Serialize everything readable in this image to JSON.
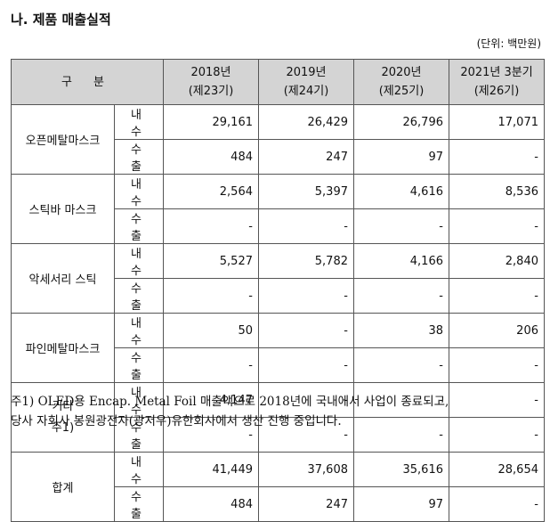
{
  "title": "나. 제품 매출실적",
  "unit": "(단위: 백만원)",
  "header": {
    "category": "구 분",
    "periods": [
      {
        "year": "2018년",
        "term": "(제23기)"
      },
      {
        "year": "2019년",
        "term": "(제24기)"
      },
      {
        "year": "2020년",
        "term": "(제25기)"
      },
      {
        "year": "2021년 3분기",
        "term": "(제26기)"
      }
    ]
  },
  "products": [
    {
      "name": "오픈메탈마스크",
      "name2": "",
      "rows": [
        {
          "type": "내 수",
          "values": [
            "29,161",
            "26,429",
            "26,796",
            "17,071"
          ]
        },
        {
          "type": "수 출",
          "values": [
            "484",
            "247",
            "97",
            "-"
          ]
        }
      ]
    },
    {
      "name": "스틱바 마스크",
      "name2": "",
      "rows": [
        {
          "type": "내 수",
          "values": [
            "2,564",
            "5,397",
            "4,616",
            "8,536"
          ]
        },
        {
          "type": "수 출",
          "values": [
            "-",
            "-",
            "-",
            "-"
          ]
        }
      ]
    },
    {
      "name": "악세서리 스틱",
      "name2": "",
      "rows": [
        {
          "type": "내 수",
          "values": [
            "5,527",
            "5,782",
            "4,166",
            "2,840"
          ]
        },
        {
          "type": "수 출",
          "values": [
            "-",
            "-",
            "-",
            "-"
          ]
        }
      ]
    },
    {
      "name": "파인메탈마스크",
      "name2": "",
      "rows": [
        {
          "type": "내 수",
          "values": [
            "50",
            "-",
            "38",
            "206"
          ]
        },
        {
          "type": "수 출",
          "values": [
            "-",
            "-",
            "-",
            "-"
          ]
        }
      ]
    },
    {
      "name": "기타",
      "name2": "주1)",
      "rows": [
        {
          "type": "내 수",
          "values": [
            "4,147",
            "-",
            "-",
            "-"
          ]
        },
        {
          "type": "수 출",
          "values": [
            "-",
            "-",
            "-",
            "-"
          ]
        }
      ]
    },
    {
      "name": "합계",
      "name2": "",
      "rows": [
        {
          "type": "내 수",
          "values": [
            "41,449",
            "37,608",
            "35,616",
            "28,654"
          ]
        },
        {
          "type": "수 출",
          "values": [
            "484",
            "247",
            "97",
            "-"
          ]
        }
      ]
    }
  ],
  "footnote": [
    "주1) OLED용 Encap. Metal Foil 매출액으로 2018년에 국내에서 사업이 종료되고,",
    "당사 자회사 봉원광전자(광저우)유한회사에서 생산 진행 중입니다."
  ]
}
